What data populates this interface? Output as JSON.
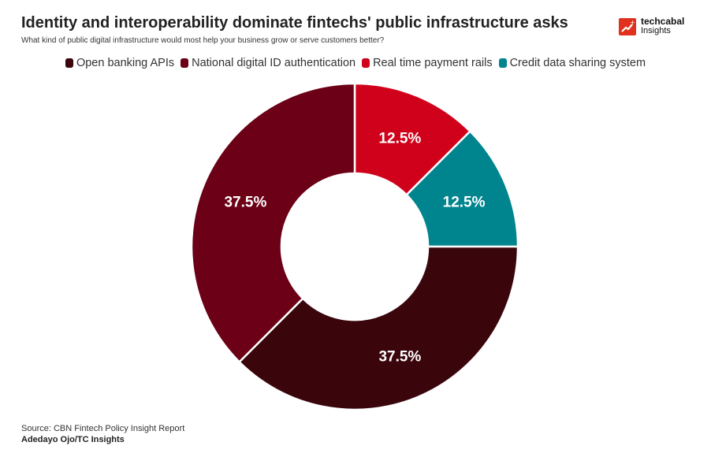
{
  "title": "Identity and interoperability dominate fintechs' public infrastructure asks",
  "subtitle": "What kind of public digital infrastructure would most help your business grow or serve customers better?",
  "logo": {
    "name": "techcabal",
    "sub": "Insights"
  },
  "source": "Source: CBN Fintech Policy Insight Report",
  "author": "Adedayo Ojo/TC Insights",
  "chart_data": {
    "type": "pie",
    "donut": true,
    "legend_position": "top",
    "series": [
      {
        "name": "Open banking APIs",
        "value": 37.5,
        "label": "37.5%",
        "color": "#3a060c"
      },
      {
        "name": "National digital ID authentication",
        "value": 37.5,
        "label": "37.5%",
        "color": "#6b0016"
      },
      {
        "name": "Real time payment rails",
        "value": 12.5,
        "label": "12.5%",
        "color": "#d0021b"
      },
      {
        "name": "Credit data sharing system",
        "value": 12.5,
        "label": "12.5%",
        "color": "#00858f"
      }
    ],
    "draw_order": [
      2,
      3,
      0,
      1
    ]
  }
}
